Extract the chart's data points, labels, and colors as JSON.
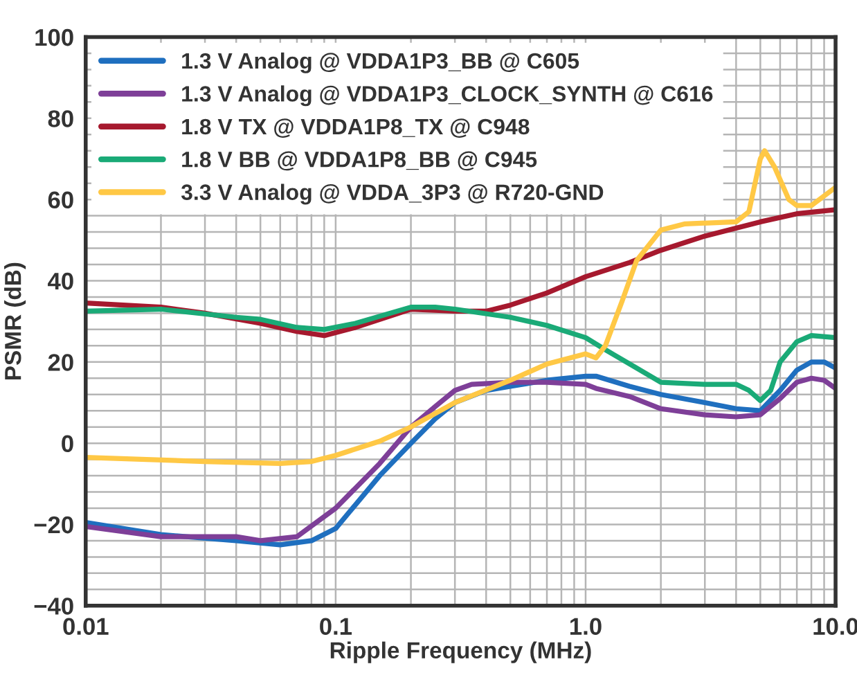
{
  "chart_data": {
    "type": "line",
    "xlabel": "Ripple Frequency (MHz)",
    "ylabel": "PSMR (dB)",
    "log": "x",
    "grid": true,
    "legend": "top left",
    "xlim": [
      0.01,
      10
    ],
    "ylim": [
      -40,
      100
    ],
    "xticks": [
      {
        "value": 0.01,
        "label": "0.01"
      },
      {
        "value": 0.1,
        "label": "0.1"
      },
      {
        "value": 1,
        "label": "1.0"
      },
      {
        "value": 10,
        "label": "10.0"
      }
    ],
    "yticks": [
      -40,
      -20,
      0,
      20,
      40,
      60,
      80,
      100
    ],
    "series": [
      {
        "name": "1.3 V Analog @ VDDA1P3_BB @ C605",
        "color": "#1f6fbf",
        "x": [
          0.01,
          0.02,
          0.04,
          0.06,
          0.08,
          0.1,
          0.15,
          0.2,
          0.25,
          0.3,
          0.4,
          0.5,
          0.7,
          1.0,
          1.1,
          1.5,
          2,
          3,
          4,
          5,
          6,
          7,
          8,
          9,
          10
        ],
        "values": [
          -19.5,
          -22.5,
          -24,
          -25,
          -24,
          -21,
          -8,
          0,
          6,
          10,
          13,
          14,
          15.5,
          16.5,
          16.5,
          14,
          12,
          10,
          8.5,
          8,
          13,
          18,
          20,
          20,
          18.5
        ]
      },
      {
        "name": "1.3 V Analog @ VDDA1P3_CLOCK_SYNTH @ C616",
        "color": "#7e3f98",
        "x": [
          0.01,
          0.02,
          0.04,
          0.05,
          0.07,
          0.1,
          0.15,
          0.2,
          0.25,
          0.3,
          0.35,
          0.5,
          0.7,
          1.0,
          1.1,
          1.5,
          2,
          3,
          4,
          5,
          6,
          7,
          8,
          9,
          10
        ],
        "values": [
          -20.5,
          -23,
          -23,
          -24,
          -23,
          -16,
          -5,
          4,
          9,
          13,
          14.5,
          15,
          15,
          14.5,
          13.5,
          11.5,
          8.5,
          7,
          6.5,
          7,
          11,
          15,
          16,
          15.5,
          13.5
        ]
      },
      {
        "name": "1.8 V TX @ VDDA1P8_TX @ C948",
        "color": "#a6192e",
        "x": [
          0.01,
          0.02,
          0.03,
          0.05,
          0.07,
          0.09,
          0.12,
          0.2,
          0.3,
          0.4,
          0.5,
          0.7,
          1.0,
          1.5,
          2,
          3,
          5,
          7,
          10
        ],
        "values": [
          34.5,
          33.5,
          32,
          29.5,
          27.5,
          26.5,
          28.5,
          33,
          32.5,
          32.5,
          34,
          37,
          41,
          44.5,
          47.5,
          51,
          54.5,
          56.5,
          57.5
        ]
      },
      {
        "name": "1.8 V BB @ VDDA1P8_BB @ C945",
        "color": "#1aaa77",
        "x": [
          0.01,
          0.02,
          0.04,
          0.05,
          0.07,
          0.09,
          0.12,
          0.2,
          0.25,
          0.3,
          0.5,
          0.7,
          1.0,
          1.2,
          1.5,
          2,
          3,
          4,
          4.5,
          5,
          5.5,
          6,
          7,
          8,
          10
        ],
        "values": [
          32.5,
          33,
          31,
          30.5,
          28.5,
          28,
          29.5,
          33.5,
          33.5,
          33,
          31,
          29,
          26,
          23,
          19.5,
          15,
          14.5,
          14.5,
          13,
          10.5,
          13,
          20,
          25,
          26.5,
          26
        ]
      },
      {
        "name": "3.3 V Analog @ VDDA_3P3 @ R720-GND",
        "color": "#ffc845",
        "x": [
          0.01,
          0.03,
          0.06,
          0.08,
          0.1,
          0.15,
          0.2,
          0.3,
          0.5,
          0.7,
          1.0,
          1.1,
          1.2,
          1.4,
          1.6,
          2,
          2.5,
          4,
          4.5,
          5,
          5.2,
          5.7,
          6.5,
          7,
          8,
          10
        ],
        "values": [
          -3.5,
          -4.5,
          -5,
          -4.5,
          -3,
          0.5,
          4,
          10,
          15.5,
          19.5,
          22,
          21,
          24,
          35,
          45,
          52.5,
          54,
          54.5,
          57,
          70,
          72,
          68,
          60,
          58.5,
          58.5,
          63
        ]
      }
    ]
  }
}
